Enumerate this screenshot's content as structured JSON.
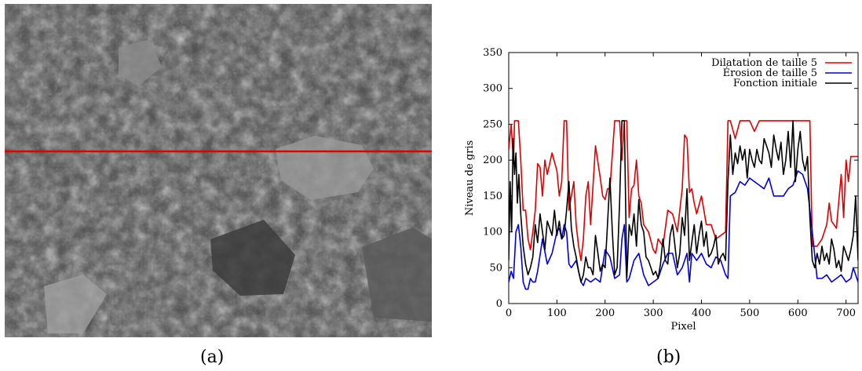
{
  "figure": {
    "caption_a": "(a)",
    "caption_b": "(b)",
    "photo_description_icon": "grayscale-rock-fragments-photo",
    "profile_line_color": "#e00000"
  },
  "chart_data": {
    "type": "line",
    "xlabel": "Pixel",
    "ylabel": "Niveau de gris",
    "xlim": [
      0,
      725
    ],
    "ylim": [
      0,
      350
    ],
    "xticks": [
      0,
      100,
      200,
      300,
      400,
      500,
      600,
      700
    ],
    "yticks": [
      0,
      50,
      100,
      150,
      200,
      250,
      300,
      350
    ],
    "grid": false,
    "legend_position": "top-right",
    "series": [
      {
        "name": "Dilatation de taille 5",
        "color": "#e00000",
        "x": [
          0,
          5,
          10,
          12,
          20,
          25,
          30,
          35,
          40,
          45,
          50,
          55,
          60,
          65,
          70,
          75,
          80,
          90,
          100,
          105,
          110,
          115,
          120,
          125,
          130,
          135,
          140,
          145,
          150,
          155,
          160,
          165,
          170,
          180,
          190,
          195,
          200,
          205,
          210,
          220,
          230,
          235,
          240,
          245,
          250,
          255,
          260,
          265,
          270,
          275,
          280,
          290,
          300,
          305,
          310,
          320,
          330,
          340,
          350,
          360,
          365,
          370,
          375,
          380,
          385,
          390,
          400,
          410,
          420,
          430,
          440,
          450,
          455,
          460,
          470,
          480,
          490,
          500,
          510,
          520,
          530,
          540,
          550,
          560,
          570,
          580,
          590,
          600,
          610,
          620,
          625,
          630,
          640,
          650,
          660,
          665,
          670,
          680,
          690,
          695,
          700,
          705,
          710,
          720,
          725
        ],
        "values": [
          215,
          250,
          195,
          255,
          255,
          200,
          130,
          130,
          90,
          75,
          100,
          130,
          195,
          190,
          150,
          200,
          180,
          210,
          185,
          150,
          170,
          255,
          255,
          130,
          150,
          170,
          110,
          80,
          60,
          90,
          150,
          170,
          110,
          220,
          175,
          150,
          145,
          160,
          160,
          255,
          255,
          200,
          255,
          255,
          120,
          160,
          165,
          200,
          150,
          140,
          110,
          100,
          75,
          70,
          90,
          80,
          130,
          125,
          100,
          160,
          235,
          230,
          155,
          160,
          140,
          125,
          150,
          110,
          110,
          90,
          95,
          100,
          255,
          255,
          230,
          255,
          255,
          255,
          240,
          255,
          255,
          255,
          255,
          255,
          255,
          255,
          255,
          255,
          255,
          255,
          255,
          80,
          80,
          90,
          110,
          140,
          115,
          105,
          180,
          120,
          200,
          170,
          205,
          205,
          205
        ]
      },
      {
        "name": "Érosion de taille 5",
        "color": "#0000dd",
        "x": [
          0,
          5,
          10,
          15,
          20,
          25,
          30,
          35,
          40,
          45,
          50,
          55,
          60,
          70,
          80,
          90,
          100,
          105,
          110,
          115,
          120,
          125,
          130,
          140,
          150,
          155,
          160,
          170,
          180,
          190,
          200,
          210,
          220,
          230,
          235,
          240,
          245,
          250,
          260,
          270,
          280,
          290,
          300,
          310,
          320,
          330,
          340,
          350,
          360,
          370,
          375,
          380,
          390,
          400,
          410,
          420,
          430,
          440,
          450,
          455,
          460,
          470,
          480,
          490,
          500,
          510,
          520,
          530,
          540,
          550,
          560,
          570,
          580,
          590,
          600,
          610,
          615,
          620,
          630,
          640,
          650,
          660,
          670,
          680,
          690,
          700,
          710,
          715,
          720,
          725
        ],
        "values": [
          30,
          45,
          35,
          100,
          110,
          80,
          30,
          20,
          20,
          35,
          30,
          30,
          45,
          90,
          55,
          70,
          100,
          105,
          90,
          110,
          100,
          55,
          50,
          60,
          30,
          25,
          35,
          30,
          35,
          30,
          75,
          65,
          35,
          40,
          90,
          110,
          30,
          35,
          60,
          70,
          40,
          25,
          30,
          35,
          55,
          70,
          70,
          40,
          50,
          70,
          30,
          70,
          60,
          70,
          55,
          50,
          65,
          60,
          40,
          35,
          150,
          155,
          170,
          165,
          175,
          170,
          165,
          160,
          175,
          150,
          150,
          150,
          160,
          165,
          185,
          180,
          170,
          160,
          100,
          35,
          35,
          40,
          30,
          35,
          40,
          30,
          35,
          50,
          40,
          30
        ]
      },
      {
        "name": "Fonction initiale",
        "color": "#000000",
        "x": [
          0,
          3,
          6,
          9,
          12,
          15,
          18,
          21,
          25,
          30,
          35,
          40,
          45,
          50,
          55,
          60,
          65,
          70,
          75,
          80,
          85,
          90,
          95,
          100,
          105,
          110,
          115,
          120,
          125,
          130,
          135,
          140,
          145,
          150,
          155,
          160,
          165,
          170,
          175,
          180,
          185,
          190,
          195,
          200,
          205,
          210,
          215,
          220,
          225,
          230,
          235,
          240,
          245,
          250,
          255,
          260,
          265,
          270,
          275,
          280,
          285,
          290,
          295,
          300,
          305,
          310,
          315,
          320,
          325,
          330,
          335,
          340,
          345,
          350,
          355,
          360,
          365,
          370,
          375,
          380,
          385,
          390,
          395,
          400,
          405,
          410,
          415,
          420,
          425,
          430,
          435,
          440,
          445,
          450,
          455,
          460,
          465,
          470,
          475,
          480,
          485,
          490,
          495,
          500,
          505,
          510,
          515,
          520,
          525,
          530,
          535,
          540,
          545,
          550,
          555,
          560,
          565,
          570,
          575,
          580,
          585,
          590,
          595,
          600,
          605,
          610,
          615,
          620,
          625,
          630,
          635,
          640,
          645,
          650,
          655,
          660,
          665,
          670,
          675,
          680,
          685,
          690,
          695,
          700,
          705,
          710,
          715,
          720,
          725
        ],
        "values": [
          60,
          170,
          100,
          230,
          180,
          210,
          140,
          180,
          125,
          80,
          55,
          40,
          50,
          65,
          110,
          85,
          125,
          100,
          75,
          115,
          105,
          95,
          130,
          95,
          115,
          90,
          95,
          130,
          170,
          105,
          80,
          65,
          45,
          30,
          40,
          65,
          50,
          50,
          40,
          95,
          70,
          45,
          55,
          50,
          110,
          175,
          100,
          40,
          50,
          140,
          255,
          255,
          35,
          110,
          95,
          125,
          80,
          145,
          110,
          100,
          65,
          60,
          50,
          40,
          45,
          35,
          55,
          90,
          60,
          55,
          95,
          110,
          80,
          50,
          70,
          120,
          95,
          160,
          60,
          85,
          110,
          70,
          95,
          115,
          80,
          100,
          65,
          70,
          80,
          95,
          55,
          65,
          70,
          60,
          170,
          235,
          180,
          210,
          195,
          220,
          200,
          215,
          175,
          215,
          200,
          190,
          215,
          200,
          195,
          230,
          220,
          210,
          190,
          235,
          215,
          200,
          225,
          180,
          200,
          240,
          190,
          255,
          170,
          215,
          240,
          200,
          185,
          205,
          120,
          60,
          50,
          70,
          55,
          80,
          60,
          70,
          55,
          90,
          75,
          50,
          60,
          45,
          80,
          70,
          60,
          75,
          95,
          150,
          60
        ]
      }
    ]
  }
}
